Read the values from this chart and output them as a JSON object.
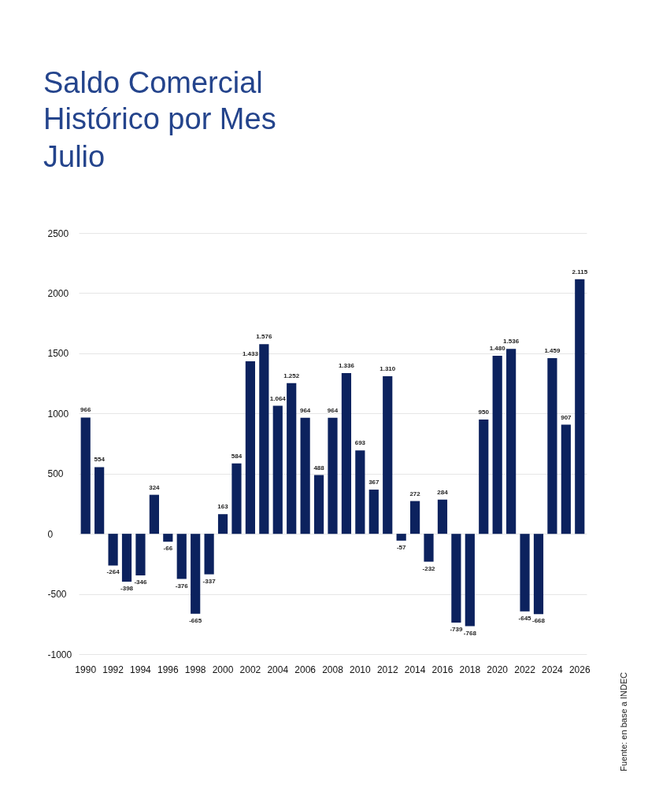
{
  "chart_data": {
    "type": "bar",
    "title": "Saldo Comercial Histórico por Mes",
    "subtitle": "Julio",
    "categories": [
      "1990",
      null,
      "1992",
      null,
      "1994",
      null,
      "1996",
      null,
      "1998",
      null,
      "2000",
      null,
      "2002",
      null,
      "2004",
      null,
      "2006",
      null,
      "2008",
      null,
      "2010",
      null,
      "2012",
      null,
      "2014",
      null,
      "2016",
      null,
      "2018",
      null,
      "2020",
      null,
      "2022",
      null,
      "2024",
      null,
      "2026"
    ],
    "values": [
      966,
      554,
      -264,
      -398,
      -346,
      324,
      -66,
      -376,
      -665,
      -337,
      163,
      584,
      1433,
      1576,
      1064,
      1252,
      964,
      488,
      964,
      1336,
      693,
      367,
      1310,
      -57,
      272,
      -232,
      284,
      -739,
      -768,
      950,
      1480,
      1536,
      -645,
      -668,
      1459,
      907,
      2115
    ],
    "value_labels": [
      "966",
      "554",
      "-264",
      "-398",
      "-346",
      "324",
      "-66",
      "-376",
      "-665",
      "-337",
      "163",
      "584",
      "1.433",
      "1.576",
      "1.064",
      "1.252",
      "964",
      "488",
      "964",
      "1.336",
      "693",
      "367",
      "1.310",
      "-57",
      "272",
      "-232",
      "284",
      "-739",
      "-768",
      "950",
      "1.480",
      "1.536",
      "-645",
      "-668",
      "1.459",
      "907",
      "2.115"
    ],
    "color": "#0c225e",
    "ylim": [
      -1000,
      2500
    ],
    "yticks": [
      -1000,
      -500,
      0,
      500,
      1000,
      1500,
      2000,
      2500
    ],
    "grid": "y",
    "annotations": [
      "Fuente: en base a INDEC"
    ]
  }
}
